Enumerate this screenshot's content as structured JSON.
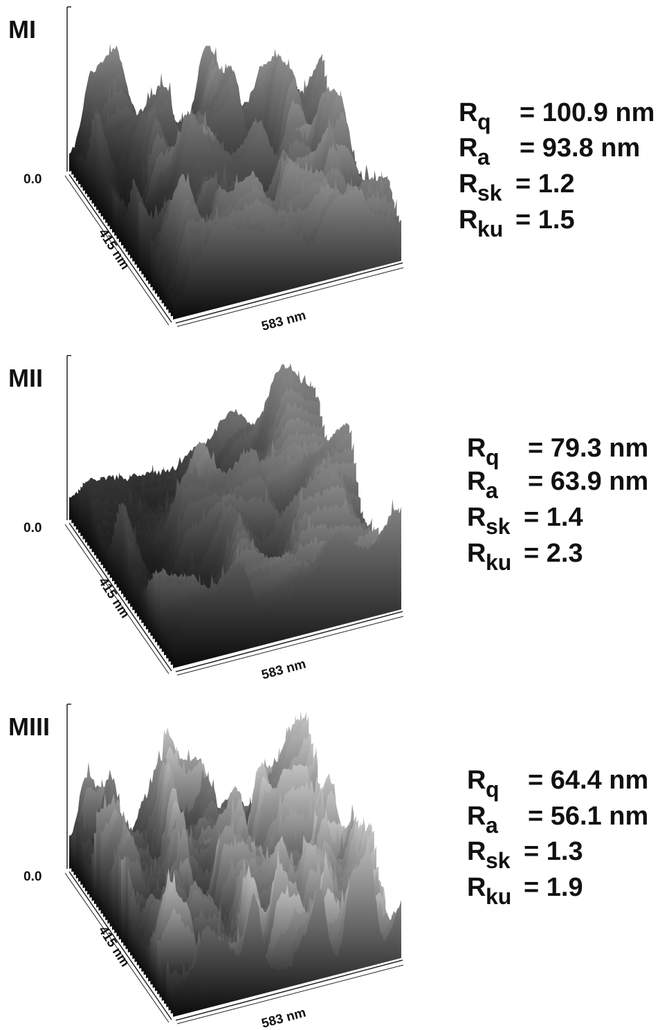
{
  "panels": [
    {
      "label": "MI",
      "z_axis_label": "0.0",
      "y_axis_label": "415 nm",
      "x_axis_label": "583 nm",
      "parameters": [
        {
          "symbol": "R",
          "subscript": "q",
          "value": "= 100.9 nm"
        },
        {
          "symbol": "R",
          "subscript": "a",
          "value": "= 93.8 nm"
        },
        {
          "symbol": "R",
          "subscript": "sk",
          "value": "= 1.2"
        },
        {
          "symbol": "R",
          "subscript": "ku",
          "value": "= 1.5"
        }
      ]
    },
    {
      "label": "MII",
      "z_axis_label": "0.0",
      "y_axis_label": "415 nm",
      "x_axis_label": "583 nm",
      "parameters": [
        {
          "symbol": "R",
          "subscript": "q",
          "value": "= 79.3 nm"
        },
        {
          "symbol": "R",
          "subscript": "a",
          "value": "= 63.9 nm"
        },
        {
          "symbol": "R",
          "subscript": "sk",
          "value": "= 1.4"
        },
        {
          "symbol": "R",
          "subscript": "ku",
          "value": "= 2.3"
        }
      ]
    },
    {
      "label": "MIII",
      "z_axis_label": "0.0",
      "y_axis_label": "415 nm",
      "x_axis_label": "583 nm",
      "parameters": [
        {
          "symbol": "R",
          "subscript": "q",
          "value": "= 64.4 nm"
        },
        {
          "symbol": "R",
          "subscript": "a",
          "value": "= 56.1 nm"
        },
        {
          "symbol": "R",
          "subscript": "sk",
          "value": "= 1.3"
        },
        {
          "symbol": "R",
          "subscript": "ku",
          "value": "= 1.9"
        }
      ]
    }
  ]
}
